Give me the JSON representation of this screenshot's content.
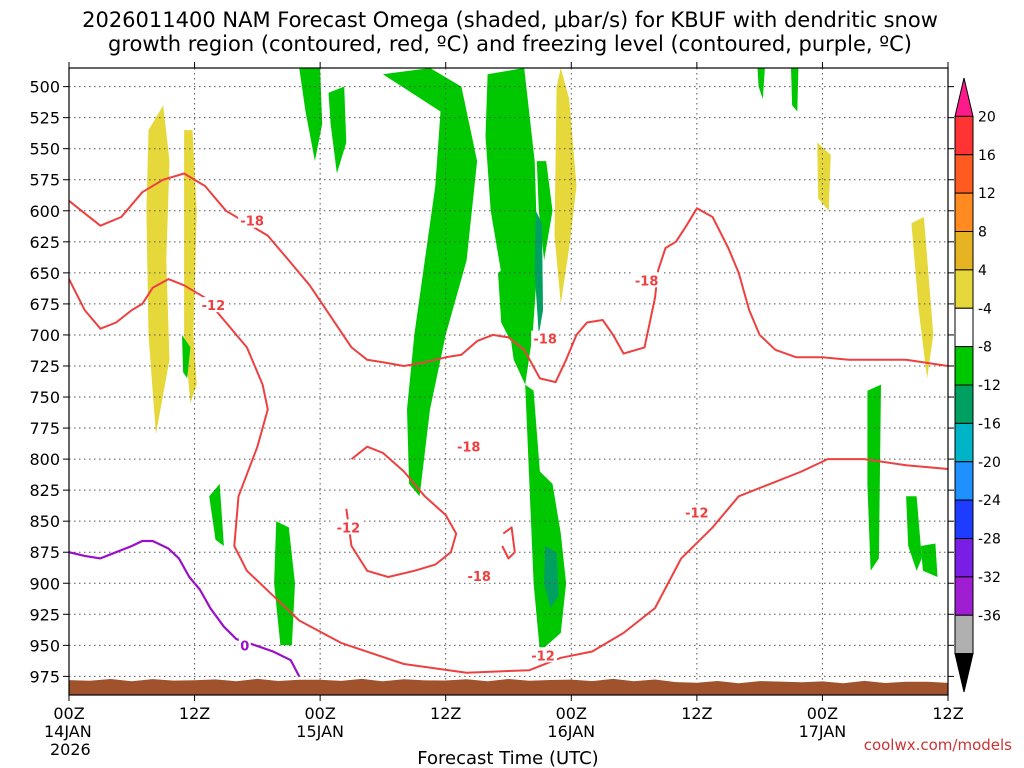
{
  "chart_data": {
    "type": "heatmap",
    "title_lines": [
      "2026011400 NAM Forecast Omega (shaded, μbar/s) for KBUF with dendritic snow",
      "growth region (contoured, red, ºC) and freezing level (contoured, purple, ºC)"
    ],
    "xlabel": "Forecast Time (UTC)",
    "ylabel": "",
    "watermark": "coolwx.com/models",
    "x_range_hours": [
      0,
      84
    ],
    "x_ticks": [
      {
        "hour": 0,
        "label": "00Z",
        "sub": "14JAN",
        "sub2": "2026"
      },
      {
        "hour": 12,
        "label": "12Z",
        "sub": "",
        "sub2": ""
      },
      {
        "hour": 24,
        "label": "00Z",
        "sub": "15JAN",
        "sub2": ""
      },
      {
        "hour": 36,
        "label": "12Z",
        "sub": "",
        "sub2": ""
      },
      {
        "hour": 48,
        "label": "00Z",
        "sub": "16JAN",
        "sub2": ""
      },
      {
        "hour": 60,
        "label": "12Z",
        "sub": "",
        "sub2": ""
      },
      {
        "hour": 72,
        "label": "00Z",
        "sub": "17JAN",
        "sub2": ""
      },
      {
        "hour": 84,
        "label": "12Z",
        "sub": "",
        "sub2": ""
      }
    ],
    "y_range_mb": [
      485,
      990
    ],
    "y_ticks": [
      500,
      525,
      550,
      575,
      600,
      625,
      650,
      675,
      700,
      725,
      750,
      775,
      800,
      825,
      850,
      875,
      900,
      925,
      950,
      975
    ],
    "colorbar": {
      "units": "μbar/s",
      "labels": [
        "20",
        "16",
        "12",
        "8",
        "4",
        "-4",
        "-8",
        "-12",
        "-16",
        "-20",
        "-24",
        "-28",
        "-32",
        "-36"
      ],
      "colors": [
        "#ff1a8c",
        "#ff3333",
        "#ff5a1f",
        "#ff8a1f",
        "#e6b422",
        "#e6d83a",
        "#ffffff",
        "#00c800",
        "#00a060",
        "#00b4c8",
        "#1e90ff",
        "#1e3cff",
        "#7a1ee6",
        "#a01ed2",
        "#b0b0b0",
        "#000000"
      ]
    },
    "omega_regions": [
      {
        "band": "4 to 8",
        "color": "#e6d83a",
        "points": [
          [
            7.6,
            535
          ],
          [
            9.0,
            515
          ],
          [
            9.6,
            560
          ],
          [
            9.3,
            640
          ],
          [
            9.6,
            720
          ],
          [
            8.3,
            780
          ],
          [
            7.6,
            700
          ],
          [
            7.4,
            600
          ]
        ]
      },
      {
        "band": "4 to 8",
        "color": "#e6d83a",
        "points": [
          [
            11.0,
            535
          ],
          [
            11.8,
            535
          ],
          [
            12.2,
            600
          ],
          [
            11.9,
            700
          ],
          [
            12.2,
            740
          ],
          [
            11.6,
            755
          ],
          [
            11.0,
            700
          ]
        ]
      },
      {
        "band": "4 to 8",
        "color": "#e6d83a",
        "points": [
          [
            46.6,
            500
          ],
          [
            47.0,
            485
          ],
          [
            47.8,
            510
          ],
          [
            48.5,
            580
          ],
          [
            47.8,
            630
          ],
          [
            47.0,
            675
          ],
          [
            46.4,
            620
          ]
        ]
      },
      {
        "band": "4 to 8",
        "color": "#e6d83a",
        "points": [
          [
            71.5,
            545
          ],
          [
            72.8,
            555
          ],
          [
            72.6,
            600
          ],
          [
            71.6,
            590
          ]
        ]
      },
      {
        "band": "4 to 8",
        "color": "#e6d83a",
        "points": [
          [
            80.5,
            610
          ],
          [
            81.7,
            605
          ],
          [
            82.6,
            700
          ],
          [
            82.0,
            735
          ],
          [
            81.2,
            680
          ]
        ]
      },
      {
        "band": "-4 to -8",
        "color": "#00c800",
        "points": [
          [
            22.0,
            485
          ],
          [
            24.0,
            485
          ],
          [
            24.2,
            530
          ],
          [
            23.5,
            560
          ],
          [
            22.6,
            520
          ]
        ]
      },
      {
        "band": "-4 to -8",
        "color": "#00c800",
        "points": [
          [
            24.8,
            505
          ],
          [
            26.3,
            500
          ],
          [
            26.5,
            545
          ],
          [
            25.6,
            570
          ],
          [
            25.0,
            530
          ]
        ]
      },
      {
        "band": "-4 to -8",
        "color": "#00c800",
        "points": [
          [
            30.0,
            490
          ],
          [
            34.5,
            485
          ],
          [
            37.5,
            500
          ],
          [
            39.0,
            560
          ],
          [
            38.0,
            640
          ],
          [
            36.0,
            700
          ],
          [
            34.5,
            760
          ],
          [
            33.5,
            830
          ],
          [
            32.5,
            820
          ],
          [
            32.3,
            760
          ],
          [
            33.0,
            700
          ],
          [
            34.0,
            640
          ],
          [
            35.0,
            580
          ],
          [
            35.5,
            520
          ]
        ]
      },
      {
        "band": "-4 to -8",
        "color": "#00c800",
        "points": [
          [
            40.0,
            490
          ],
          [
            43.5,
            485
          ],
          [
            44.5,
            560
          ],
          [
            44.8,
            640
          ],
          [
            44.3,
            700
          ],
          [
            43.6,
            740
          ],
          [
            42.5,
            720
          ],
          [
            41.5,
            660
          ],
          [
            40.3,
            600
          ],
          [
            39.8,
            540
          ]
        ]
      },
      {
        "band": "-4 to -8",
        "color": "#00c800",
        "points": [
          [
            41.0,
            650
          ],
          [
            42.6,
            640
          ],
          [
            43.0,
            700
          ],
          [
            42.2,
            705
          ],
          [
            41.3,
            690
          ]
        ]
      },
      {
        "band": "-4 to -8",
        "color": "#00c800",
        "points": [
          [
            44.7,
            560
          ],
          [
            45.6,
            560
          ],
          [
            46.2,
            600
          ],
          [
            45.4,
            640
          ],
          [
            44.9,
            600
          ]
        ]
      },
      {
        "band": "-4 to -8",
        "color": "#00c800",
        "points": [
          [
            43.6,
            740
          ],
          [
            44.4,
            745
          ],
          [
            45.0,
            810
          ],
          [
            46.2,
            820
          ],
          [
            47.0,
            860
          ],
          [
            47.5,
            900
          ],
          [
            47.0,
            940
          ],
          [
            45.0,
            955
          ],
          [
            44.4,
            900
          ],
          [
            44.0,
            820
          ]
        ]
      },
      {
        "band": "-4 to -8",
        "color": "#00c800",
        "points": [
          [
            19.8,
            850
          ],
          [
            21.0,
            855
          ],
          [
            21.6,
            900
          ],
          [
            21.3,
            950
          ],
          [
            20.2,
            950
          ],
          [
            19.6,
            900
          ]
        ]
      },
      {
        "band": "-4 to -8",
        "color": "#00c800",
        "points": [
          [
            10.8,
            700
          ],
          [
            11.6,
            710
          ],
          [
            11.3,
            735
          ],
          [
            10.9,
            730
          ]
        ]
      },
      {
        "band": "-4 to -8",
        "color": "#00c800",
        "points": [
          [
            13.4,
            830
          ],
          [
            14.4,
            820
          ],
          [
            14.8,
            870
          ],
          [
            14.0,
            865
          ]
        ]
      },
      {
        "band": "-4 to -8",
        "color": "#00c800",
        "points": [
          [
            65.8,
            485
          ],
          [
            66.5,
            485
          ],
          [
            66.3,
            510
          ],
          [
            65.9,
            500
          ]
        ]
      },
      {
        "band": "-4 to -8",
        "color": "#00c800",
        "points": [
          [
            69.0,
            485
          ],
          [
            69.7,
            485
          ],
          [
            69.6,
            520
          ],
          [
            69.1,
            515
          ]
        ]
      },
      {
        "band": "-4 to -8",
        "color": "#00c800",
        "points": [
          [
            76.3,
            745
          ],
          [
            77.6,
            740
          ],
          [
            77.4,
            880
          ],
          [
            76.6,
            890
          ],
          [
            76.3,
            820
          ]
        ]
      },
      {
        "band": "-4 to -8",
        "color": "#00c800",
        "points": [
          [
            80.0,
            830
          ],
          [
            81.0,
            830
          ],
          [
            81.5,
            880
          ],
          [
            81.0,
            890
          ],
          [
            80.2,
            870
          ]
        ]
      },
      {
        "band": "-4 to -8",
        "color": "#00c800",
        "points": [
          [
            81.4,
            870
          ],
          [
            82.8,
            868
          ],
          [
            83.0,
            895
          ],
          [
            81.6,
            890
          ]
        ]
      },
      {
        "band": "-8 to -12",
        "color": "#00a060",
        "points": [
          [
            44.6,
            600
          ],
          [
            45.2,
            610
          ],
          [
            45.3,
            680
          ],
          [
            44.9,
            700
          ],
          [
            44.5,
            650
          ]
        ]
      },
      {
        "band": "-8 to -12",
        "color": "#00a060",
        "points": [
          [
            45.5,
            870
          ],
          [
            46.6,
            875
          ],
          [
            46.8,
            910
          ],
          [
            46.0,
            920
          ],
          [
            45.4,
            900
          ]
        ]
      }
    ],
    "dgz_contours": [
      {
        "label": "-12",
        "points": [
          [
            0,
            655
          ],
          [
            1.5,
            680
          ],
          [
            3.0,
            695
          ],
          [
            4.5,
            690
          ],
          [
            6.0,
            680
          ],
          [
            7.0,
            675
          ],
          [
            8.0,
            662
          ],
          [
            9.5,
            655
          ],
          [
            11.0,
            660
          ],
          [
            13.0,
            670
          ],
          [
            15.0,
            690
          ],
          [
            17.0,
            710
          ],
          [
            18.5,
            740
          ],
          [
            19.0,
            760
          ],
          [
            18.0,
            790
          ],
          [
            16.2,
            830
          ],
          [
            15.8,
            870
          ],
          [
            17.0,
            890
          ],
          [
            19.5,
            910
          ],
          [
            22.0,
            930
          ],
          [
            26.0,
            948
          ],
          [
            32.0,
            965
          ],
          [
            38.0,
            972
          ],
          [
            44.0,
            970
          ],
          [
            47.0,
            960
          ],
          [
            50.0,
            955
          ],
          [
            53.0,
            940
          ],
          [
            56.0,
            920
          ],
          [
            58.5,
            880
          ],
          [
            61.5,
            855
          ],
          [
            64.0,
            830
          ],
          [
            67.0,
            820
          ],
          [
            70.0,
            810
          ],
          [
            72.5,
            800
          ],
          [
            76.0,
            800
          ],
          [
            80.0,
            805
          ],
          [
            84,
            808
          ]
        ]
      },
      {
        "label": "-18",
        "points": [
          [
            0,
            592
          ],
          [
            1.5,
            602
          ],
          [
            3.0,
            612
          ],
          [
            5.0,
            605
          ],
          [
            7.0,
            585
          ],
          [
            9.0,
            575
          ],
          [
            11.0,
            570
          ],
          [
            13.0,
            580
          ],
          [
            15.0,
            600
          ],
          [
            17.0,
            610
          ],
          [
            19.0,
            620
          ],
          [
            21.0,
            640
          ],
          [
            23.0,
            660
          ],
          [
            25.0,
            685
          ],
          [
            27.0,
            710
          ],
          [
            28.5,
            720
          ],
          [
            30.0,
            722
          ],
          [
            32.0,
            725
          ],
          [
            34.0,
            722
          ],
          [
            36.0,
            718
          ],
          [
            37.5,
            716
          ],
          [
            39.0,
            705
          ],
          [
            40.5,
            700
          ],
          [
            42.0,
            702
          ],
          [
            43.5,
            712
          ],
          [
            45.0,
            735
          ],
          [
            46.5,
            738
          ],
          [
            47.5,
            720
          ],
          [
            48.5,
            700
          ],
          [
            49.5,
            690
          ],
          [
            51.0,
            688
          ],
          [
            52.0,
            700
          ],
          [
            53.0,
            715
          ],
          [
            55.0,
            710
          ],
          [
            55.5,
            690
          ],
          [
            56.0,
            670
          ],
          [
            56.3,
            648
          ],
          [
            57.0,
            630
          ],
          [
            58.0,
            625
          ],
          [
            59.0,
            612
          ],
          [
            60.0,
            598
          ],
          [
            61.5,
            605
          ],
          [
            63.0,
            630
          ],
          [
            64.0,
            650
          ],
          [
            65.0,
            680
          ],
          [
            66.0,
            700
          ],
          [
            67.5,
            712
          ],
          [
            69.5,
            718
          ],
          [
            72.0,
            718
          ],
          [
            74.5,
            720
          ],
          [
            77.0,
            720
          ],
          [
            80.0,
            720
          ],
          [
            84,
            725
          ]
        ]
      },
      {
        "label": "-18",
        "points": [
          [
            27.0,
            800
          ],
          [
            28.5,
            790
          ],
          [
            30.0,
            795
          ],
          [
            32.0,
            810
          ],
          [
            34.0,
            830
          ],
          [
            36.0,
            845
          ],
          [
            37.0,
            860
          ],
          [
            36.5,
            875
          ],
          [
            35.0,
            885
          ],
          [
            33.0,
            890
          ],
          [
            30.5,
            895
          ],
          [
            28.5,
            890
          ],
          [
            27.0,
            870
          ],
          [
            26.5,
            840
          ]
        ]
      },
      {
        "label": "",
        "points": [
          [
            41.5,
            860
          ],
          [
            42.3,
            855
          ],
          [
            42.6,
            875
          ],
          [
            42.0,
            880
          ],
          [
            41.4,
            870
          ]
        ]
      }
    ],
    "freezing_contour": {
      "label": "0",
      "points": [
        [
          0,
          875
        ],
        [
          1.5,
          878
        ],
        [
          3.0,
          880
        ],
        [
          4.5,
          875
        ],
        [
          6.0,
          870
        ],
        [
          7.0,
          866
        ],
        [
          8.0,
          866
        ],
        [
          9.5,
          872
        ],
        [
          10.5,
          880
        ],
        [
          11.5,
          895
        ],
        [
          12.5,
          905
        ],
        [
          13.5,
          920
        ],
        [
          14.8,
          935
        ],
        [
          16.0,
          945
        ],
        [
          17.8,
          950
        ],
        [
          19.5,
          955
        ],
        [
          21.2,
          962
        ],
        [
          22.0,
          975
        ]
      ]
    },
    "terrain_top_mb": 978
  }
}
